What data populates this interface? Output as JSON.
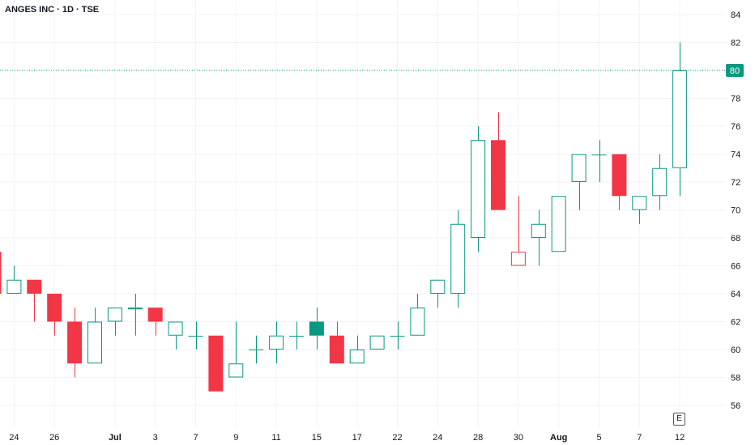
{
  "header": {
    "title": "ANGES INC · 1D · TSE"
  },
  "price_badge": {
    "label": "80",
    "color": "#089981"
  },
  "e_badge": {
    "label": "E"
  },
  "colors": {
    "up": "#089981",
    "down": "#f23645",
    "grid": "#f0f3fa",
    "text": "#131722"
  },
  "chart_data": {
    "type": "candlestick",
    "title": "ANGES INC · 1D · TSE",
    "xlabel": "",
    "ylabel": "",
    "ylim": [
      54.5,
      85
    ],
    "y_ticks": [
      56,
      58,
      60,
      62,
      64,
      66,
      68,
      70,
      72,
      74,
      76,
      78,
      80,
      82,
      84
    ],
    "x_ticks": [
      {
        "label": "24",
        "i": 1,
        "bold": false
      },
      {
        "label": "26",
        "i": 3,
        "bold": false
      },
      {
        "label": "Jul",
        "i": 6,
        "bold": true
      },
      {
        "label": "3",
        "i": 8,
        "bold": false
      },
      {
        "label": "7",
        "i": 10,
        "bold": false
      },
      {
        "label": "9",
        "i": 12,
        "bold": false
      },
      {
        "label": "11",
        "i": 14,
        "bold": false
      },
      {
        "label": "15",
        "i": 16,
        "bold": false
      },
      {
        "label": "17",
        "i": 18,
        "bold": false
      },
      {
        "label": "22",
        "i": 20,
        "bold": false
      },
      {
        "label": "24",
        "i": 22,
        "bold": false
      },
      {
        "label": "28",
        "i": 24,
        "bold": false
      },
      {
        "label": "30",
        "i": 26,
        "bold": false
      },
      {
        "label": "Aug",
        "i": 28,
        "bold": true
      },
      {
        "label": "5",
        "i": 30,
        "bold": false
      },
      {
        "label": "7",
        "i": 32,
        "bold": false
      },
      {
        "label": "12",
        "i": 34,
        "bold": false
      }
    ],
    "last_price": 80,
    "candles": [
      {
        "o": 67,
        "h": 67,
        "l": 64,
        "c": 64,
        "style": "down"
      },
      {
        "o": 64,
        "h": 66,
        "l": 64,
        "c": 65,
        "style": "up"
      },
      {
        "o": 65,
        "h": 65,
        "l": 62,
        "c": 64,
        "style": "down"
      },
      {
        "o": 64,
        "h": 64,
        "l": 61,
        "c": 62,
        "style": "down"
      },
      {
        "o": 62,
        "h": 63,
        "l": 58,
        "c": 59,
        "style": "down"
      },
      {
        "o": 59,
        "h": 63,
        "l": 59,
        "c": 62,
        "style": "up"
      },
      {
        "o": 62,
        "h": 63,
        "l": 61,
        "c": 63,
        "style": "up"
      },
      {
        "o": 63,
        "h": 64,
        "l": 61,
        "c": 63,
        "style": "up"
      },
      {
        "o": 63,
        "h": 63,
        "l": 61,
        "c": 62,
        "style": "down"
      },
      {
        "o": 61,
        "h": 62,
        "l": 60,
        "c": 62,
        "style": "up"
      },
      {
        "o": 61,
        "h": 62,
        "l": 60,
        "c": 61,
        "style": "doji-down"
      },
      {
        "o": 61,
        "h": 61,
        "l": 57,
        "c": 57,
        "style": "down"
      },
      {
        "o": 58,
        "h": 62,
        "l": 58,
        "c": 59,
        "style": "up"
      },
      {
        "o": 60,
        "h": 61,
        "l": 59,
        "c": 60,
        "style": "doji-up"
      },
      {
        "o": 60,
        "h": 62,
        "l": 59,
        "c": 61,
        "style": "up"
      },
      {
        "o": 61,
        "h": 62,
        "l": 60,
        "c": 61,
        "style": "doji-up"
      },
      {
        "o": 61,
        "h": 63,
        "l": 60,
        "c": 62,
        "style": "up-filled"
      },
      {
        "o": 61,
        "h": 62,
        "l": 59,
        "c": 59,
        "style": "down"
      },
      {
        "o": 59,
        "h": 61,
        "l": 59,
        "c": 60,
        "style": "up"
      },
      {
        "o": 60,
        "h": 61,
        "l": 60,
        "c": 61,
        "style": "up"
      },
      {
        "o": 61,
        "h": 62,
        "l": 60,
        "c": 61,
        "style": "doji-up"
      },
      {
        "o": 61,
        "h": 64,
        "l": 61,
        "c": 63,
        "style": "up"
      },
      {
        "o": 64,
        "h": 65,
        "l": 63,
        "c": 65,
        "style": "up"
      },
      {
        "o": 64,
        "h": 70,
        "l": 63,
        "c": 69,
        "style": "up"
      },
      {
        "o": 68,
        "h": 76,
        "l": 67,
        "c": 75,
        "style": "up"
      },
      {
        "o": 75,
        "h": 77,
        "l": 70,
        "c": 70,
        "style": "down"
      },
      {
        "o": 66,
        "h": 71,
        "l": 66,
        "c": 67,
        "style": "down-hollow"
      },
      {
        "o": 68,
        "h": 70,
        "l": 66,
        "c": 69,
        "style": "up"
      },
      {
        "o": 67,
        "h": 71,
        "l": 67,
        "c": 71,
        "style": "up"
      },
      {
        "o": 72,
        "h": 74,
        "l": 70,
        "c": 74,
        "style": "up"
      },
      {
        "o": 74,
        "h": 75,
        "l": 72,
        "c": 74,
        "style": "doji-up"
      },
      {
        "o": 74,
        "h": 74,
        "l": 70,
        "c": 71,
        "style": "down"
      },
      {
        "o": 70,
        "h": 71,
        "l": 69,
        "c": 71,
        "style": "up"
      },
      {
        "o": 71,
        "h": 74,
        "l": 70,
        "c": 73,
        "style": "up"
      },
      {
        "o": 73,
        "h": 82,
        "l": 71,
        "c": 80,
        "style": "up"
      }
    ]
  }
}
